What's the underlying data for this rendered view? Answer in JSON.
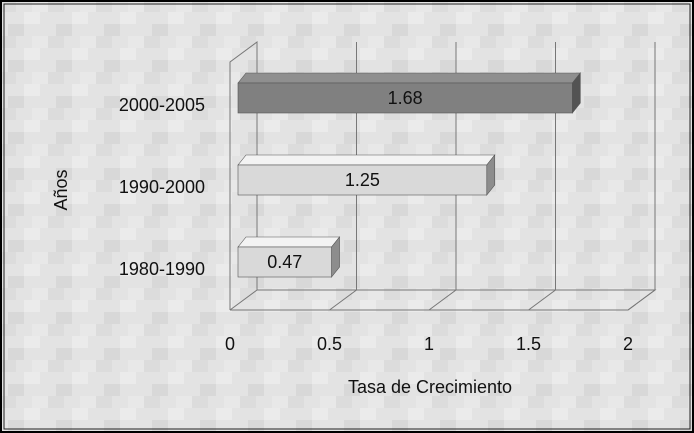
{
  "chart_data": {
    "type": "bar",
    "orientation": "horizontal",
    "x_label": "Tasa de Crecimiento",
    "y_label": "Años",
    "categories": [
      "1980-1990",
      "1990-2000",
      "2000-2005"
    ],
    "values": [
      0.47,
      1.25,
      1.68
    ],
    "colors": [
      "#d9d9d9",
      "#d9d9d9",
      "#808080"
    ],
    "xlim": [
      0,
      2
    ],
    "xticks": [
      0,
      0.5,
      1,
      1.5,
      2
    ],
    "grid": true
  }
}
